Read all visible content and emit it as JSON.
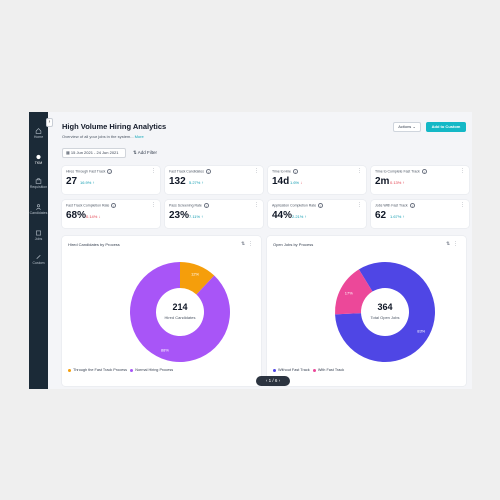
{
  "sidebar": {
    "items": [
      {
        "label": "Home",
        "icon": "home-icon"
      },
      {
        "label": "TKM",
        "icon": "star-icon",
        "active": true
      },
      {
        "label": "Requisition",
        "icon": "briefcase-icon"
      },
      {
        "label": "Candidates",
        "icon": "person-icon"
      },
      {
        "label": "Jobs",
        "icon": "box-icon"
      },
      {
        "label": "Custom",
        "icon": "pen-icon"
      }
    ]
  },
  "header": {
    "title": "High Volume Hiring Analytics",
    "subtitle": "Overview of all your jobs in the system...",
    "more_link": "More",
    "actions_label": "Actions",
    "add_label": "Add to Custom"
  },
  "filters": {
    "date_range": "15 Jun 2021 - 24 Jun 2021",
    "add_filter": "Add Filter"
  },
  "kpis": [
    {
      "title": "Hires Through Fast Track",
      "value": "27",
      "delta": "16.9%",
      "trend": "up"
    },
    {
      "title": "Fast Track Candidates",
      "value": "132",
      "delta": "5.27%",
      "trend": "up"
    },
    {
      "title": "Time to Hire",
      "value": "14d",
      "delta": "1.6%",
      "trend": "down"
    },
    {
      "title": "Time to Complete Fast Track",
      "value": "2m",
      "delta": "0.13%",
      "trend": "up"
    },
    {
      "title": "Fast Track Completion Rate",
      "value": "68%",
      "delta": "0.14%",
      "trend": "down"
    },
    {
      "title": "Pass Screening Rate",
      "value": "23%",
      "delta": "7.11%",
      "trend": "up"
    },
    {
      "title": "Application Completion Rate",
      "value": "44%",
      "delta": "2.21%",
      "trend": "up"
    },
    {
      "title": "Jobs With Fast Track",
      "value": "62",
      "delta": "1.67%",
      "trend": "up"
    }
  ],
  "panels": [
    {
      "title": "Hired Candidates by Process",
      "center_value": "214",
      "center_label": "Hired Candidates",
      "legend": [
        "Through the Fast Track Process",
        "Normal Hiring Process"
      ]
    },
    {
      "title": "Open Jobs by Process",
      "center_value": "364",
      "center_label": "Total Open Jobs",
      "legend": [
        "Without Fast Track",
        "With Fast Track"
      ]
    }
  ],
  "chart_data": [
    {
      "type": "pie",
      "categories": [
        "Through the Fast Track Process",
        "Normal Hiring Process"
      ],
      "values": [
        12,
        88
      ],
      "labels": [
        "12%",
        "88%"
      ],
      "colors": [
        "#f59e0b",
        "#a855f7"
      ]
    },
    {
      "type": "pie",
      "categories": [
        "Without Fast Track",
        "With Fast Track"
      ],
      "values": [
        83,
        17
      ],
      "labels": [
        "83%",
        "17%"
      ],
      "colors": [
        "#4f46e5",
        "#ec4899"
      ]
    }
  ],
  "pager": {
    "text": "1 / 6"
  },
  "colors": {
    "accent": "#14b8c6",
    "sidebar": "#1b2a37",
    "up": "#0f9bb0",
    "down": "#e23d4b"
  }
}
